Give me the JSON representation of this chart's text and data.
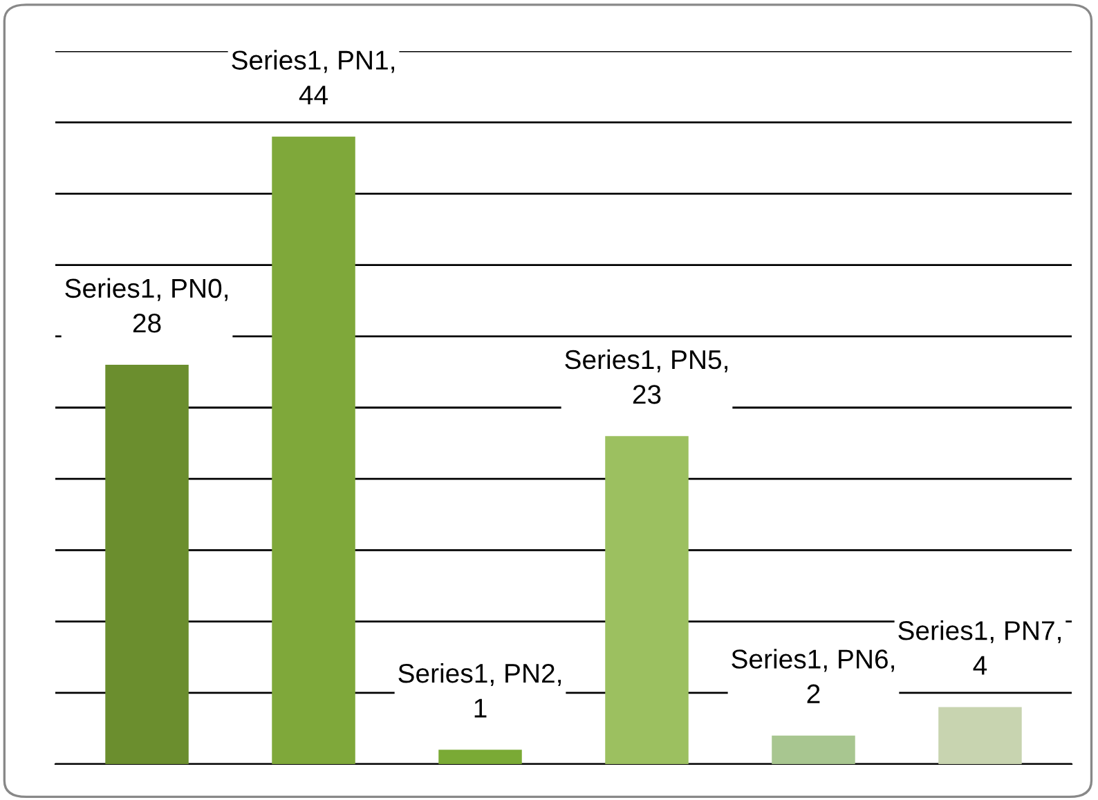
{
  "chart_data": {
    "type": "bar",
    "categories": [
      null,
      null,
      null,
      null,
      null,
      null
    ],
    "values": [
      28,
      44,
      1,
      23,
      2,
      4
    ],
    "colors": [
      "#6b8e2e",
      "#7fa83a",
      "#7aaa35",
      "#9cc060",
      "#a8c690",
      "#c8d4b0"
    ],
    "value_labels": [
      "Series1, PN0, 28",
      "Series1, PN1, 44",
      "Series1, PN2, 1",
      "Series1, PN5, 23",
      "Series1, PN6, 2",
      "Series1, PN7, 4"
    ],
    "ylim": [
      0,
      50
    ],
    "yticks": [
      {
        "value": 0,
        "label": null
      },
      {
        "value": 5,
        "label": null
      },
      {
        "value": 10,
        "label": null
      },
      {
        "value": 15,
        "label": null
      },
      {
        "value": 20,
        "label": null
      },
      {
        "value": 25,
        "label": null
      },
      {
        "value": 30,
        "label": null
      },
      {
        "value": 35,
        "label": null
      },
      {
        "value": 40,
        "label": null
      },
      {
        "value": 45,
        "label": null
      },
      {
        "value": 50,
        "label": null
      }
    ],
    "grid": "y"
  }
}
